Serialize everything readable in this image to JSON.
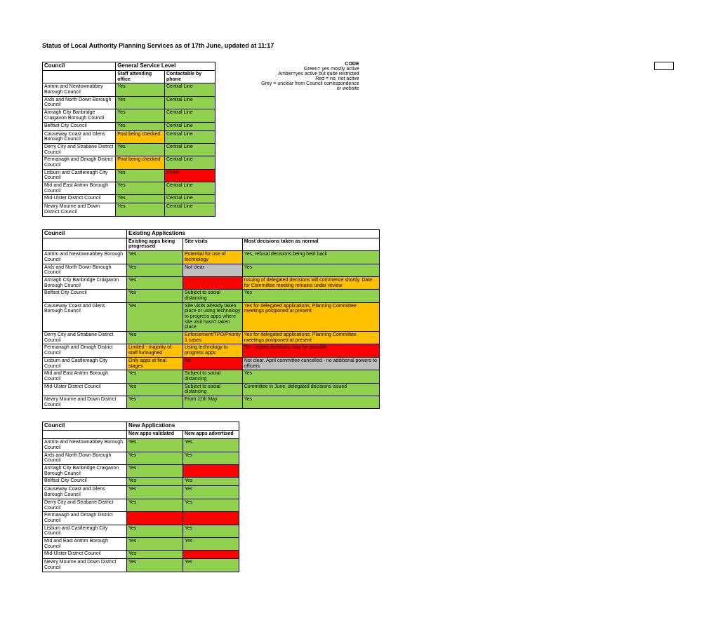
{
  "title": "Status of Local Authority Planning Services as of 17th June, updated at 11:17",
  "colors": {
    "green": "#92d050",
    "amber": "#ffc000",
    "red": "#ff0000",
    "grey": "#bfbfbf",
    "white": "#ffffff"
  },
  "code": {
    "header": "CODE",
    "lines": [
      "Green= yes mostly active",
      "Amber=yes active but quite restricted",
      "Red = no, not active",
      "Grey = unclear from Council correspondence or website"
    ]
  },
  "tables": [
    {
      "section": "General Service Level",
      "colA_header": "Council",
      "subheaders": [
        "Staff attending office",
        "Contactable by phone"
      ],
      "rows": [
        {
          "council": "Antrim and Newtownabbey Borough Council",
          "cells": [
            {
              "t": "Yes",
              "c": "green"
            },
            {
              "t": "Central Line",
              "c": "green"
            }
          ]
        },
        {
          "council": "Ards and North Down Borough Council",
          "cells": [
            {
              "t": "Yes",
              "c": "green"
            },
            {
              "t": "Central Line",
              "c": "green"
            }
          ]
        },
        {
          "council": "Armagh City Banbridge Craigavon Borough Council",
          "cells": [
            {
              "t": "Yes",
              "c": "green"
            },
            {
              "t": "Central Line",
              "c": "green"
            }
          ]
        },
        {
          "council": "Belfast City Council",
          "cells": [
            {
              "t": "Yes",
              "c": "green"
            },
            {
              "t": "Central Line",
              "c": "green"
            }
          ]
        },
        {
          "council": "Causeway Coast and Glens Borough Council",
          "cells": [
            {
              "t": "Post being checked",
              "c": "amber"
            },
            {
              "t": "Central Line",
              "c": "green"
            }
          ]
        },
        {
          "council": "Derry City and Strabane District Council",
          "cells": [
            {
              "t": "Yes",
              "c": "green"
            },
            {
              "t": "Central Line",
              "c": "green"
            }
          ]
        },
        {
          "council": "Fermanagh and Omagh District Council",
          "cells": [
            {
              "t": "Post being checked",
              "c": "amber"
            },
            {
              "t": "Central Line",
              "c": "green"
            }
          ]
        },
        {
          "council": "Lisburn and Castlereagh City Council",
          "cells": [
            {
              "t": "Yes",
              "c": "green"
            },
            {
              "t": "Direct",
              "c": "red"
            }
          ]
        },
        {
          "council": "Mid and East Antrim Borough Council",
          "cells": [
            {
              "t": "Yes",
              "c": "green"
            },
            {
              "t": "Central Line",
              "c": "green"
            }
          ]
        },
        {
          "council": "Mid-Ulster District Council",
          "cells": [
            {
              "t": "Yes",
              "c": "green"
            },
            {
              "t": "Central Line",
              "c": "green"
            }
          ]
        },
        {
          "council": "Newry Mourne and Down District Council",
          "cells": [
            {
              "t": "Yes",
              "c": "green"
            },
            {
              "t": "Central Line",
              "c": "green"
            }
          ]
        }
      ]
    },
    {
      "section": "Existing Applications",
      "colA_header": "Council",
      "subheaders": [
        "Existing apps being progressed",
        "Site visits",
        "Most decisions taken as normal"
      ],
      "rows": [
        {
          "council": "Antrim and Newtownabbey Borough Council",
          "cells": [
            {
              "t": "Yes",
              "c": "green"
            },
            {
              "t": "Potential for use of technology",
              "c": "amber"
            },
            {
              "t": "Yes, refusal decisions being held back",
              "c": "green"
            }
          ]
        },
        {
          "council": "Ards and North Down Borough Council",
          "cells": [
            {
              "t": "Yes",
              "c": "green"
            },
            {
              "t": "Not clear",
              "c": "grey"
            },
            {
              "t": "Yes",
              "c": "green"
            }
          ]
        },
        {
          "council": "Armagh City Banbridge Craigavon Borough Council",
          "cells": [
            {
              "t": "Yes",
              "c": "green"
            },
            {
              "t": "",
              "c": "red"
            },
            {
              "t": "Issuing of delegated decisions will commence shortly. Date for Committee meeting remains under review",
              "c": "amber"
            }
          ]
        },
        {
          "council": "Belfast City Council",
          "cells": [
            {
              "t": "Yes",
              "c": "green"
            },
            {
              "t": "Subject to social distancing",
              "c": "green"
            },
            {
              "t": "Yes",
              "c": "green"
            }
          ]
        },
        {
          "council": "Causeway Coast and Glens Borough Council",
          "cells": [
            {
              "t": "Yes",
              "c": "green"
            },
            {
              "t": "Site visits already taken place or using technology to progress apps where site visit hasn't taken place",
              "c": "green"
            },
            {
              "t": "Yes for delegated applications; Planning Committee meetings postponed at present",
              "c": "amber"
            }
          ]
        },
        {
          "council": "Derry City and Strabane District Council",
          "cells": [
            {
              "t": "Yes",
              "c": "green"
            },
            {
              "t": "Enforcement/TPO/Priority 1 cases",
              "c": "amber"
            },
            {
              "t": "Yes for delegated applications; Planning Committee meetings postponed at present",
              "c": "amber"
            }
          ]
        },
        {
          "council": "Fermanagh and Omagh District Council",
          "cells": [
            {
              "t": "Limited - majority of staff furloughed",
              "c": "amber"
            },
            {
              "t": "Using technology to progress apps",
              "c": "amber"
            },
            {
              "t": "No - urgent decisions may be possible",
              "c": "red"
            }
          ]
        },
        {
          "council": "Lisburn and Castlereagh City Council",
          "cells": [
            {
              "t": "Only apps at final stages",
              "c": "amber"
            },
            {
              "t": "No",
              "c": "red"
            },
            {
              "t": "Not clear. April committee cancelled - no additional powers to officers",
              "c": "grey"
            }
          ]
        },
        {
          "council": "Mid and East Antrim Borough Council",
          "cells": [
            {
              "t": "Yes",
              "c": "green"
            },
            {
              "t": "Subject to social distancing",
              "c": "green"
            },
            {
              "t": "Yes",
              "c": "green"
            }
          ]
        },
        {
          "council": "Mid-Ulster District Council",
          "cells": [
            {
              "t": "Yes",
              "c": "green"
            },
            {
              "t": "Subject to social distancing",
              "c": "green"
            },
            {
              "t": "Committee in June, delegated decisions issued",
              "c": "green"
            }
          ]
        },
        {
          "council": "Newry Mourne and Down District Council",
          "cells": [
            {
              "t": "Yes",
              "c": "green"
            },
            {
              "t": "From 11th May",
              "c": "green"
            },
            {
              "t": "Yes",
              "c": "green"
            }
          ]
        }
      ]
    },
    {
      "section": "New Applications",
      "colA_header": "Council",
      "subheaders": [
        "New apps validated",
        "New apps advertised"
      ],
      "rows": [
        {
          "council": "Antrim and Newtownabbey Borough Council",
          "cells": [
            {
              "t": "Yes",
              "c": "green"
            },
            {
              "t": "Yes",
              "c": "green"
            }
          ]
        },
        {
          "council": "Ards and North Down Borough Council",
          "cells": [
            {
              "t": "Yes",
              "c": "green"
            },
            {
              "t": "Yes",
              "c": "green"
            }
          ]
        },
        {
          "council": "Armagh City Banbridge Craigavon Borough Council",
          "cells": [
            {
              "t": "Yes",
              "c": "green"
            },
            {
              "t": "",
              "c": "red"
            }
          ]
        },
        {
          "council": "Belfast City Council",
          "cells": [
            {
              "t": "Yes",
              "c": "green"
            },
            {
              "t": "Yes",
              "c": "green"
            }
          ]
        },
        {
          "council": "Causeway Coast and Glens Borough Council",
          "cells": [
            {
              "t": "Yes",
              "c": "green"
            },
            {
              "t": "Yes",
              "c": "green"
            }
          ]
        },
        {
          "council": "Derry City and Strabane District Council",
          "cells": [
            {
              "t": "Yes",
              "c": "green"
            },
            {
              "t": "Yes",
              "c": "green"
            }
          ]
        },
        {
          "council": "Fermanagh and Omagh District Council",
          "cells": [
            {
              "t": "",
              "c": "red"
            },
            {
              "t": "",
              "c": "red"
            }
          ]
        },
        {
          "council": "Lisburn and Castlereagh City Council",
          "cells": [
            {
              "t": "Yes",
              "c": "green"
            },
            {
              "t": "Yes",
              "c": "green"
            }
          ]
        },
        {
          "council": "Mid and East Antrim Borough Council",
          "cells": [
            {
              "t": "Yes",
              "c": "green"
            },
            {
              "t": "Yes",
              "c": "green"
            }
          ]
        },
        {
          "council": "Mid-Ulster District Council",
          "cells": [
            {
              "t": "Yes",
              "c": "green"
            },
            {
              "t": "",
              "c": "red"
            }
          ]
        },
        {
          "council": "Newry Mourne and Down District Council",
          "cells": [
            {
              "t": "Yes",
              "c": "green"
            },
            {
              "t": "Yes",
              "c": "green"
            }
          ]
        }
      ]
    }
  ],
  "col_widths": [
    "115px",
    "75px",
    "75px",
    "190px"
  ]
}
